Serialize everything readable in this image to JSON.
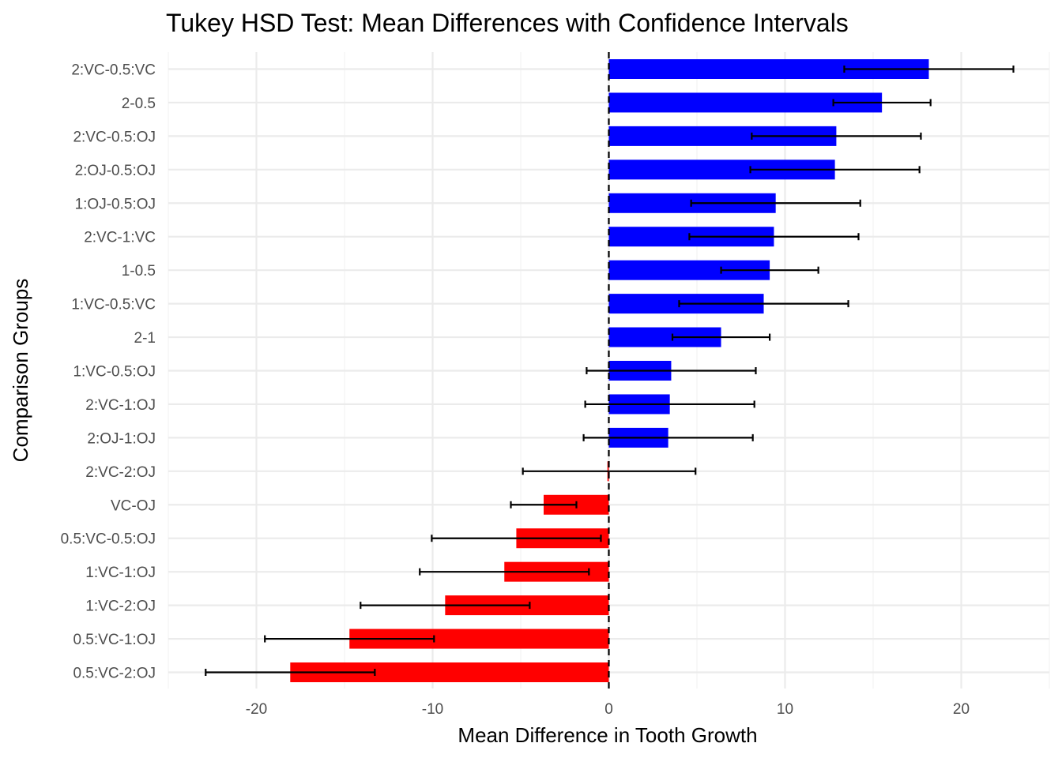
{
  "chart_data": {
    "type": "bar",
    "orientation": "horizontal",
    "title": "Tukey HSD Test: Mean Differences with Confidence Intervals",
    "xlabel": "Mean Difference in Tooth Growth",
    "ylabel": "Comparison Groups",
    "xlim": [
      -25,
      25
    ],
    "x_ticks": [
      -20,
      -10,
      0,
      10,
      20
    ],
    "grid": true,
    "legend": "none",
    "colors": {
      "positive": "#0000FF",
      "negative": "#FF0000",
      "error_bar": "#000000",
      "reference_line": "#000000"
    },
    "reference_line": {
      "value": 0,
      "style": "dashed"
    },
    "categories": [
      "2:VC-0.5:VC",
      "2-0.5",
      "2:VC-0.5:OJ",
      "2:OJ-0.5:OJ",
      "1:OJ-0.5:OJ",
      "2:VC-1:VC",
      "1-0.5",
      "1:VC-0.5:VC",
      "2-1",
      "1:VC-0.5:OJ",
      "2:VC-1:OJ",
      "2:OJ-1:OJ",
      "2:VC-2:OJ",
      "VC-OJ",
      "0.5:VC-0.5:OJ",
      "1:VC-1:OJ",
      "1:VC-2:OJ",
      "0.5:VC-1:OJ",
      "0.5:VC-2:OJ"
    ],
    "values": [
      18.16,
      15.5,
      12.91,
      12.83,
      9.47,
      9.37,
      9.13,
      8.79,
      6.37,
      3.54,
      3.46,
      3.37,
      -0.08,
      -3.7,
      -5.25,
      -5.93,
      -9.29,
      -14.72,
      -18.08
    ],
    "ci_lower": [
      13.36,
      12.74,
      8.11,
      8.03,
      4.67,
      4.57,
      6.37,
      3.99,
      3.61,
      -1.26,
      -1.34,
      -1.43,
      -4.88,
      -5.56,
      -10.05,
      -10.73,
      -14.09,
      -19.52,
      -22.88
    ],
    "ci_upper": [
      22.96,
      18.26,
      17.71,
      17.63,
      14.27,
      14.17,
      11.89,
      13.59,
      9.13,
      8.34,
      8.26,
      8.17,
      4.92,
      -1.84,
      -0.45,
      -1.13,
      -4.49,
      -9.92,
      -13.28
    ]
  }
}
